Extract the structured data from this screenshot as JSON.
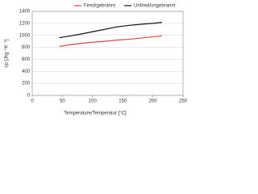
{
  "chart_data": {
    "type": "line",
    "x_label": "Temperature/Temperatur [°C]",
    "y_label": "cp [Jkg⁻¹K⁻¹]",
    "x": [
      45,
      60,
      80,
      100,
      120,
      140,
      160,
      180,
      200,
      215
    ],
    "series": [
      {
        "name": "Fired/gebrannt",
        "color": "#e0474c",
        "values": [
          815,
          840,
          865,
          885,
          900,
          920,
          935,
          955,
          975,
          990
        ]
      },
      {
        "name": "Unfired/ungebrannt",
        "color": "#111111",
        "values": [
          960,
          985,
          1020,
          1060,
          1100,
          1140,
          1165,
          1185,
          1200,
          1215
        ]
      }
    ],
    "xlim": [
      0,
      250
    ],
    "xticks": [
      0,
      50,
      100,
      150,
      200,
      250
    ],
    "ylim": [
      0,
      1400
    ],
    "yticks": [
      0,
      200,
      400,
      600,
      800,
      1000,
      1200,
      1400
    ],
    "grid": true
  }
}
